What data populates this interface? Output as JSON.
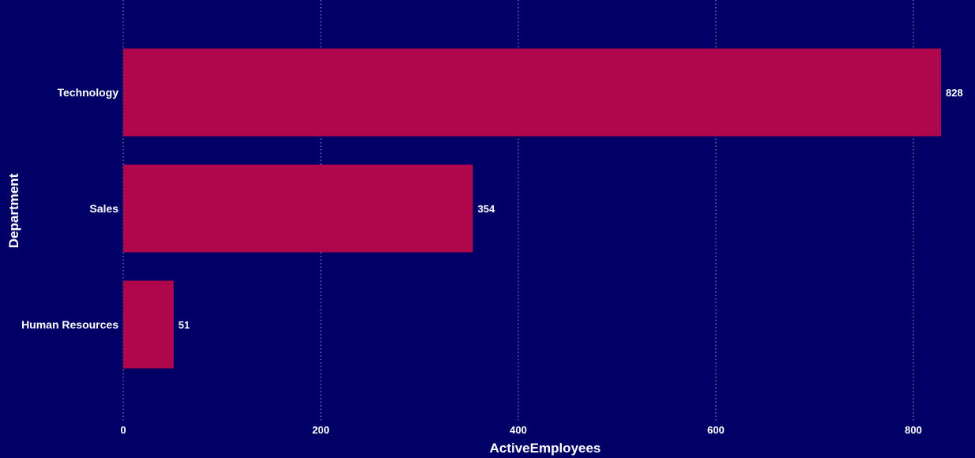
{
  "chart_data": {
    "type": "bar",
    "orientation": "horizontal",
    "categories": [
      "Technology",
      "Sales",
      "Human Resources"
    ],
    "values": [
      828,
      354,
      51
    ],
    "xlabel": "ActiveEmployees",
    "ylabel": "Department",
    "xlim": [
      0,
      860
    ],
    "xticks": [
      0,
      200,
      400,
      600,
      800
    ],
    "grid": "vertical-dotted",
    "legend": "none",
    "colors": {
      "background": "#000066",
      "bar": "#b0064b",
      "text": "#ffffff",
      "grid": "#9999cc"
    }
  }
}
